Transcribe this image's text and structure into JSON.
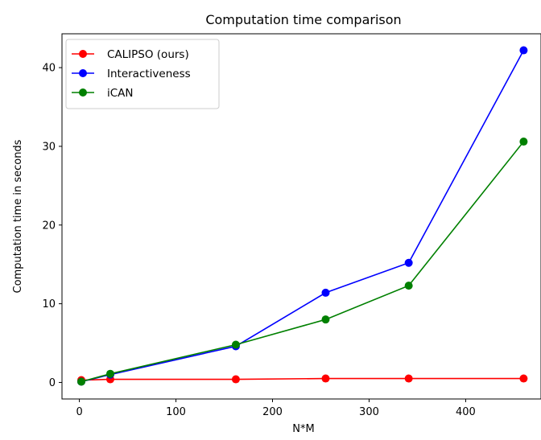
{
  "chart_data": {
    "type": "line",
    "title": "Computation time comparison",
    "xlabel": "N*M",
    "ylabel": "Computation time in seconds",
    "xlim": [
      -18,
      478
    ],
    "ylim": [
      -2.1,
      44.3
    ],
    "xticks": [
      0,
      100,
      200,
      300,
      400
    ],
    "yticks": [
      0,
      10,
      20,
      30,
      40
    ],
    "grid": false,
    "legend_position": "upper-left",
    "x": [
      2,
      32,
      162,
      255,
      341,
      460
    ],
    "series": [
      {
        "name": "CALIPSO (ours)",
        "color": "#ff0000",
        "values": [
          0.3,
          0.4,
          0.4,
          0.5,
          0.5,
          0.5
        ]
      },
      {
        "name": "Interactiveness",
        "color": "#0000ff",
        "values": [
          0.1,
          1.0,
          4.6,
          11.4,
          15.2,
          42.2
        ]
      },
      {
        "name": "iCAN",
        "color": "#008000",
        "values": [
          0.1,
          1.1,
          4.8,
          8.0,
          12.3,
          30.6
        ]
      }
    ]
  }
}
